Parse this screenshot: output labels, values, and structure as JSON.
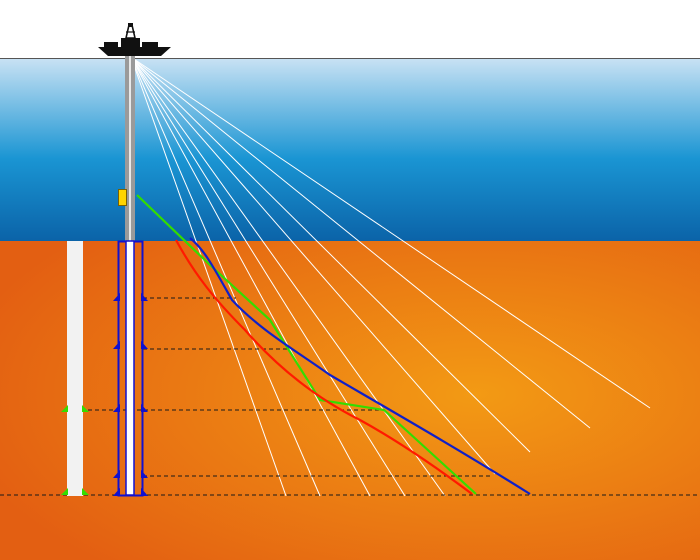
{
  "diagram": {
    "title": "",
    "colors": {
      "sky": "#ffffff",
      "sea_top": "#c9e2f4",
      "sea_mid": "#1a95d3",
      "sea_bottom": "#0b63a8",
      "earth_center": "#f39a14",
      "earth_edge": "#e35f12",
      "well_outline": "#1010d0",
      "well_fill": "#ffffff",
      "riser": "#9a9a9a",
      "ray": "#ffffff",
      "blue_path": "#1020c8",
      "green_path": "#33dd00",
      "red_path": "#ff1a00",
      "source_box": "#ffd400",
      "left_casing": "#f2f2f2",
      "left_casing_marker": "#33dd00",
      "depth_line": "#1a1a1a"
    },
    "icons": {
      "platform": "drilling-rig-icon",
      "source": "seismic-source-icon"
    }
  }
}
